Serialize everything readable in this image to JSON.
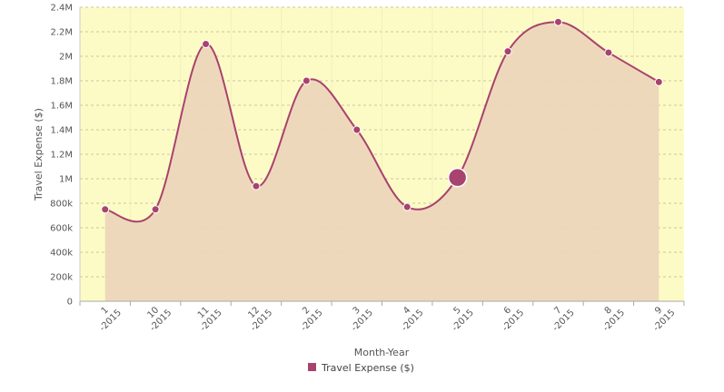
{
  "chart_data": {
    "type": "area",
    "xlabel": "Month-Year",
    "ylabel": "Travel Expense ($)",
    "categories": [
      [
        "1",
        "-2015"
      ],
      [
        "10",
        "-2015"
      ],
      [
        "11",
        "-2015"
      ],
      [
        "12",
        "-2015"
      ],
      [
        "2",
        "-2015"
      ],
      [
        "3",
        "-2015"
      ],
      [
        "4",
        "-2015"
      ],
      [
        "5",
        "-2015"
      ],
      [
        "6",
        "-2015"
      ],
      [
        "7",
        "-2015"
      ],
      [
        "8",
        "-2015"
      ],
      [
        "9",
        "-2015"
      ]
    ],
    "series": [
      {
        "name": "Travel Expense ($)",
        "values": [
          750000,
          750000,
          2100000,
          940000,
          1800000,
          1400000,
          770000,
          1010000,
          2040000,
          2280000,
          2030000,
          1790000
        ]
      }
    ],
    "highlighted_index": 7,
    "ylim": [
      0,
      2400000
    ],
    "yticks": [
      0,
      200000,
      400000,
      600000,
      800000,
      1000000,
      1200000,
      1400000,
      1600000,
      1800000,
      2000000,
      2200000,
      2400000
    ],
    "ytick_labels": [
      "0",
      "200k",
      "400k",
      "600k",
      "800k",
      "1M",
      "1.2M",
      "1.4M",
      "1.6M",
      "1.8M",
      "2M",
      "2.2M",
      "2.4M"
    ],
    "grid": true,
    "legend": "bottom-center",
    "colors": {
      "line": "#a8426e",
      "area": "#edd6ba",
      "plot_background": "#fdfbc5",
      "grid": "#c8c6a4",
      "marker": "#a8426e"
    }
  }
}
